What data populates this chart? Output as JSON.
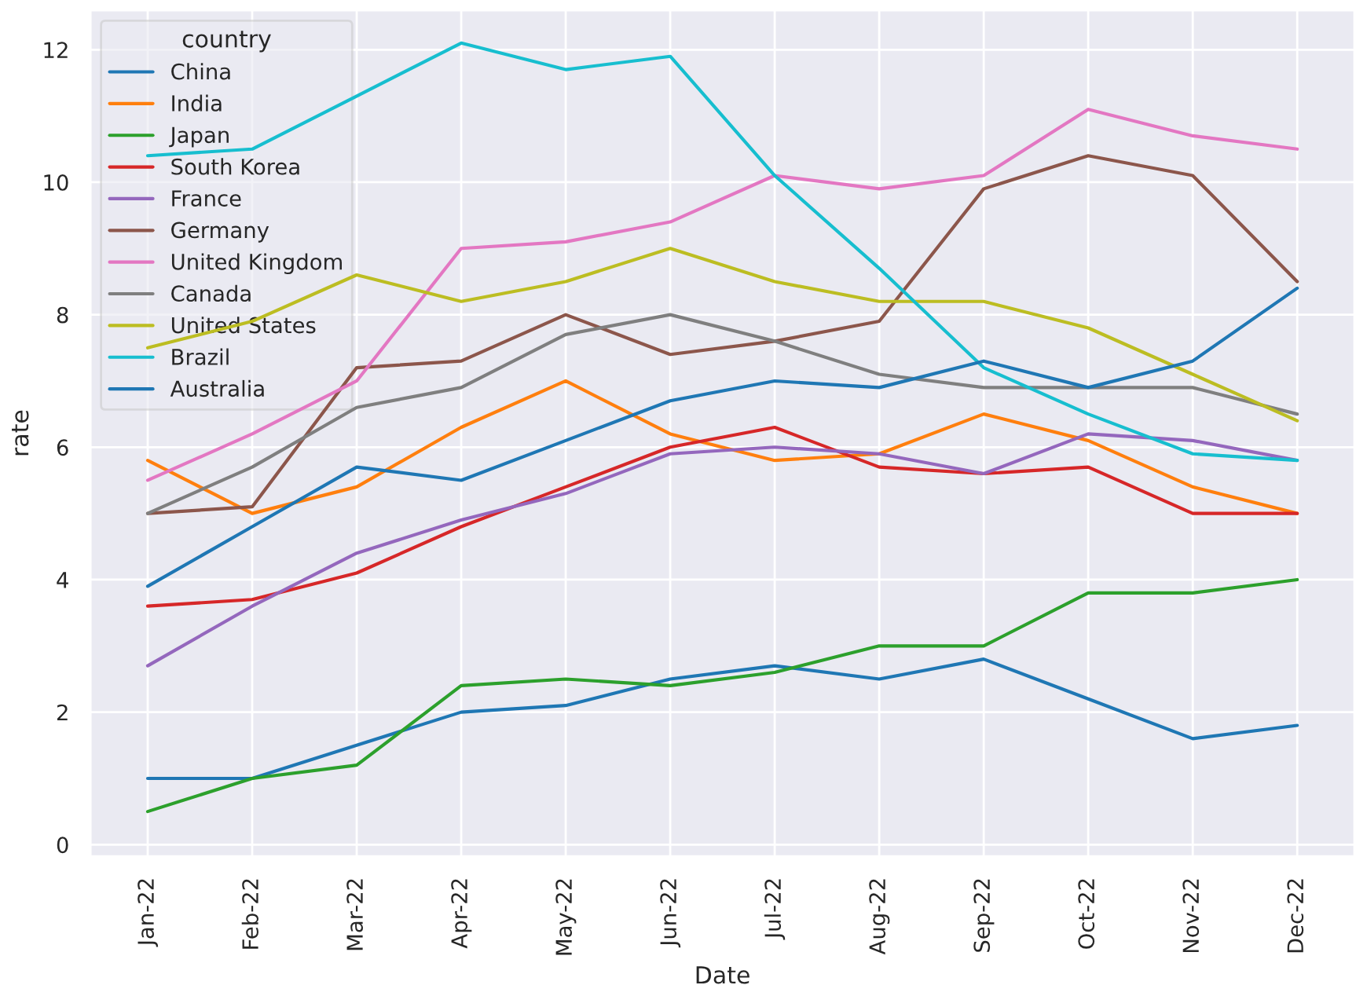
{
  "chart_data": {
    "type": "line",
    "xlabel": "Date",
    "ylabel": "rate",
    "legend_title": "country",
    "legend": "top left",
    "grid": true,
    "categories": [
      "Jan-22",
      "Feb-22",
      "Mar-22",
      "Apr-22",
      "May-22",
      "Jun-22",
      "Jul-22",
      "Aug-22",
      "Sep-22",
      "Oct-22",
      "Nov-22",
      "Dec-22"
    ],
    "ylim": [
      -0.18,
      12.6
    ],
    "yticks": [
      0,
      2,
      4,
      6,
      8,
      10,
      12
    ],
    "series": [
      {
        "name": "China",
        "color": "#1f77b4",
        "values": [
          1.0,
          1.0,
          1.5,
          2.0,
          2.1,
          2.5,
          2.7,
          2.5,
          2.8,
          2.2,
          1.6,
          1.8
        ]
      },
      {
        "name": "India",
        "color": "#ff7f0e",
        "values": [
          5.8,
          5.0,
          5.4,
          6.3,
          7.0,
          6.2,
          5.8,
          5.9,
          6.5,
          6.1,
          5.4,
          5.0
        ]
      },
      {
        "name": "Japan",
        "color": "#2ca02c",
        "values": [
          0.5,
          1.0,
          1.2,
          2.4,
          2.5,
          2.4,
          2.6,
          3.0,
          3.0,
          3.8,
          3.8,
          4.0
        ]
      },
      {
        "name": "South Korea",
        "color": "#d62728",
        "values": [
          3.6,
          3.7,
          4.1,
          4.8,
          5.4,
          6.0,
          6.3,
          5.7,
          5.6,
          5.7,
          5.0,
          5.0
        ]
      },
      {
        "name": "France",
        "color": "#9467bd",
        "values": [
          2.7,
          3.6,
          4.4,
          4.9,
          5.3,
          5.9,
          6.0,
          5.9,
          5.6,
          6.2,
          6.1,
          5.8
        ]
      },
      {
        "name": "Germany",
        "color": "#8c564b",
        "values": [
          5.0,
          5.1,
          7.2,
          7.3,
          8.0,
          7.4,
          7.6,
          7.9,
          9.9,
          10.4,
          10.1,
          8.5
        ]
      },
      {
        "name": "United Kingdom",
        "color": "#e377c2",
        "values": [
          5.5,
          6.2,
          7.0,
          9.0,
          9.1,
          9.4,
          10.1,
          9.9,
          10.1,
          11.1,
          10.7,
          10.5
        ]
      },
      {
        "name": "Canada",
        "color": "#7f7f7f",
        "values": [
          5.0,
          5.7,
          6.6,
          6.9,
          7.7,
          8.0,
          7.6,
          7.1,
          6.9,
          6.9,
          6.9,
          6.5
        ]
      },
      {
        "name": "United States",
        "color": "#bcbd22",
        "values": [
          7.5,
          7.9,
          8.6,
          8.2,
          8.5,
          9.0,
          8.5,
          8.2,
          8.2,
          7.8,
          7.1,
          6.4
        ]
      },
      {
        "name": "Brazil",
        "color": "#17becf",
        "values": [
          10.4,
          10.5,
          11.3,
          12.1,
          11.7,
          11.9,
          10.1,
          8.7,
          7.2,
          6.5,
          5.9,
          5.8
        ]
      },
      {
        "name": "Australia",
        "color": "#1f77b4",
        "values": [
          3.9,
          4.8,
          5.7,
          5.5,
          6.1,
          6.7,
          7.0,
          6.9,
          7.3,
          6.9,
          7.3,
          8.4
        ]
      }
    ]
  }
}
